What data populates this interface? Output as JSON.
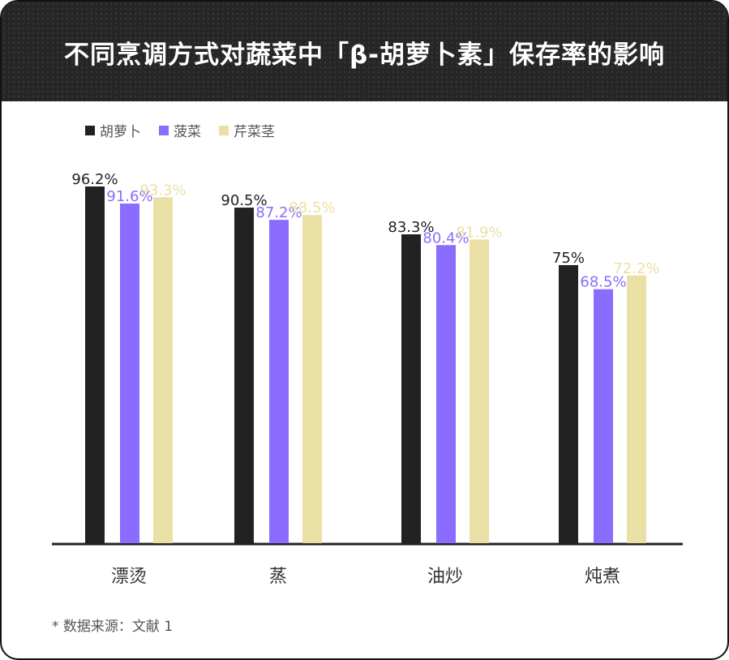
{
  "title": "不同烹调方式对蔬菜中「β-胡萝卜素」保存率的影响",
  "footnote": "* 数据来源：文献 1",
  "chart_data": {
    "type": "bar",
    "categories": [
      "漂烫",
      "蒸",
      "油炒",
      "炖煮"
    ],
    "series": [
      {
        "name": "胡萝卜",
        "color": "#222222",
        "values": [
          96.2,
          90.5,
          83.3,
          75
        ],
        "labels": [
          "96.2%",
          "90.5%",
          "83.3%",
          "75%"
        ],
        "label_color": "#222222"
      },
      {
        "name": "菠菜",
        "color": "#8A6DFF",
        "values": [
          91.6,
          87.2,
          80.4,
          68.5
        ],
        "labels": [
          "91.6%",
          "87.2%",
          "80.4%",
          "68.5%"
        ],
        "label_color": "#8A6DFF"
      },
      {
        "name": "芹菜茎",
        "color": "#EAE0A6",
        "values": [
          93.3,
          88.5,
          81.9,
          72.2
        ],
        "labels": [
          "93.3%",
          "88.5%",
          "81.9%",
          "72.2%"
        ],
        "label_color": "#EAE0A6"
      }
    ],
    "ylim": [
      0,
      100
    ],
    "legend_position": "top-left",
    "grid": false
  }
}
